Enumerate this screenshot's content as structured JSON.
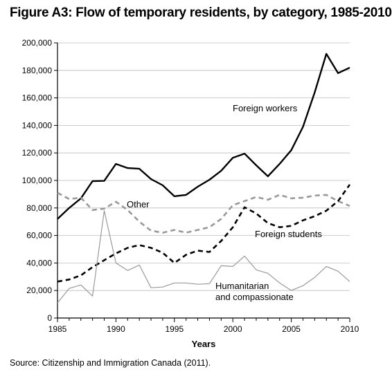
{
  "title": "Figure A3: Flow of temporary residents, by category, 1985-2010",
  "source": "Source: Citizenship and Immigration Canada (2011).",
  "chart_data": {
    "type": "line",
    "title": "Figure A3: Flow of temporary residents, by category, 1985-2010",
    "xlabel": "Years",
    "ylabel": "",
    "xlim": [
      1985,
      2010
    ],
    "ylim": [
      0,
      200000
    ],
    "grid": "horizontal",
    "x_ticks": [
      1985,
      1990,
      1995,
      2000,
      2005,
      2010
    ],
    "y_ticks": [
      0,
      20000,
      40000,
      60000,
      80000,
      100000,
      120000,
      140000,
      160000,
      180000,
      200000
    ],
    "y_tick_labels": [
      "0",
      "20,000",
      "40,000",
      "60,000",
      "80,000",
      "100,000",
      "120,000",
      "140,000",
      "160,000",
      "180,000",
      "200,000"
    ],
    "x": [
      1985,
      1986,
      1987,
      1988,
      1989,
      1990,
      1991,
      1992,
      1993,
      1994,
      1995,
      1996,
      1997,
      1998,
      1999,
      2000,
      2001,
      2002,
      2003,
      2004,
      2005,
      2006,
      2007,
      2008,
      2009,
      2010
    ],
    "series": [
      {
        "name": "Foreign workers",
        "label_lines": [
          "Foreign workers"
        ],
        "color": "#000000",
        "style": "solid-thick",
        "values": [
          72000,
          80000,
          87000,
          99500,
          99700,
          112000,
          109000,
          108500,
          101000,
          96500,
          88500,
          89500,
          95500,
          100500,
          107000,
          116500,
          119500,
          111000,
          103000,
          112000,
          122000,
          139000,
          164000,
          192000,
          178000,
          182000
        ]
      },
      {
        "name": "Other",
        "label_lines": [
          "Other"
        ],
        "color": "#999999",
        "style": "dashed-thick",
        "values": [
          91000,
          86500,
          87500,
          78500,
          79500,
          84500,
          78500,
          70000,
          63500,
          62000,
          64000,
          62000,
          64000,
          66000,
          72000,
          82000,
          85000,
          88000,
          86000,
          89500,
          87000,
          87500,
          89000,
          89500,
          85000,
          81500
        ]
      },
      {
        "name": "Foreign students",
        "label_lines": [
          "Foreign students"
        ],
        "color": "#000000",
        "style": "dashed-thick",
        "values": [
          26500,
          28000,
          31000,
          37000,
          42000,
          47000,
          51000,
          53000,
          51000,
          47500,
          40000,
          46000,
          49000,
          48000,
          56000,
          66000,
          80500,
          76000,
          69000,
          66000,
          67000,
          71000,
          74000,
          78000,
          85000,
          97000
        ]
      },
      {
        "name": "Humanitarian and compassionate",
        "label_lines": [
          "Humanitarian",
          "and compassionate"
        ],
        "color": "#999999",
        "style": "solid-thin",
        "values": [
          11000,
          21500,
          24000,
          16000,
          78000,
          40000,
          34500,
          38500,
          22000,
          22500,
          25500,
          25500,
          24500,
          25000,
          38000,
          37500,
          45000,
          35000,
          32500,
          25500,
          20000,
          23500,
          29500,
          37500,
          34000,
          26500
        ]
      }
    ]
  }
}
